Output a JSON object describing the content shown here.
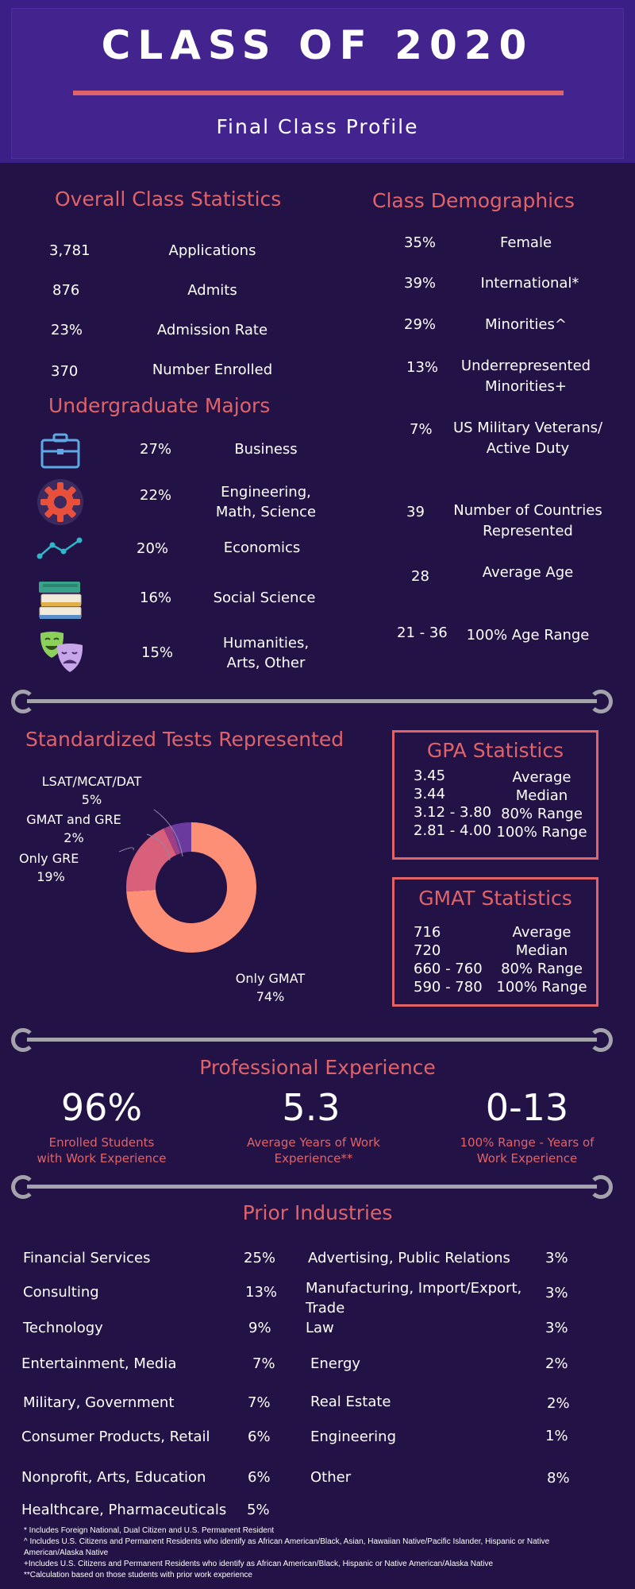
{
  "header": {
    "title": "CLASS OF 2020",
    "subtitle": "Final Class Profile"
  },
  "overall": {
    "title": "Overall Class Statistics",
    "rows": [
      {
        "value": "3,781",
        "label": "Applications"
      },
      {
        "value": "876",
        "label": "Admits"
      },
      {
        "value": "23%",
        "label": "Admission Rate"
      },
      {
        "value": "370",
        "label": "Number Enrolled"
      }
    ]
  },
  "majors": {
    "title": "Undergraduate Majors",
    "rows": [
      {
        "icon": "briefcase-icon",
        "value": "27%",
        "label_1": "Business",
        "label_2": ""
      },
      {
        "icon": "gear-icon",
        "value": "22%",
        "label_1": "Engineering,",
        "label_2": "Math, Science"
      },
      {
        "icon": "line-chart-icon",
        "value": "20%",
        "label_1": "Economics",
        "label_2": ""
      },
      {
        "icon": "books-icon",
        "value": "16%",
        "label_1": "Social Science",
        "label_2": ""
      },
      {
        "icon": "theater-masks-icon",
        "value": "15%",
        "label_1": "Humanities,",
        "label_2": "Arts, Other"
      }
    ]
  },
  "demographics": {
    "title": "Class Demographics",
    "rows": [
      {
        "value": "35%",
        "label_1": "Female",
        "label_2": ""
      },
      {
        "value": "39%",
        "label_1": "International*",
        "label_2": ""
      },
      {
        "value": "29%",
        "label_1": "Minorities^",
        "label_2": ""
      },
      {
        "value": "13%",
        "label_1": "Underrepresented",
        "label_2": "Minorities+"
      },
      {
        "value": "7%",
        "label_1": "US Military Veterans/",
        "label_2": "Active Duty"
      },
      {
        "value": "39",
        "label_1": "Number of Countries",
        "label_2": "Represented"
      },
      {
        "value": "28",
        "label_1": "Average Age",
        "label_2": ""
      },
      {
        "value": "21 - 36",
        "label_1": "100% Age Range",
        "label_2": ""
      }
    ]
  },
  "tests": {
    "title": "Standardized Tests Represented",
    "labels": [
      {
        "name": "LSAT/MCAT/DAT",
        "pct": "5%"
      },
      {
        "name": "GMAT and GRE",
        "pct": "2%"
      },
      {
        "name": "Only GRE",
        "pct": "19%"
      },
      {
        "name": "Only GMAT",
        "pct": "74%"
      }
    ]
  },
  "chart_data": {
    "type": "pie",
    "categories": [
      "Only GMAT",
      "Only GRE",
      "GMAT and GRE",
      "LSAT/MCAT/DAT"
    ],
    "values": [
      74,
      19,
      2,
      5
    ],
    "colors": [
      "#fd8f76",
      "#d9607a",
      "#9e3f86",
      "#6b3a9e"
    ],
    "donut": true
  },
  "gpa": {
    "title": "GPA Statistics",
    "rows": [
      {
        "value": "3.45",
        "label": "Average"
      },
      {
        "value": "3.44",
        "label": "Median"
      },
      {
        "value": "3.12 - 3.80",
        "label": "80% Range"
      },
      {
        "value": "2.81 - 4.00",
        "label": "100% Range"
      }
    ]
  },
  "gmat": {
    "title": "GMAT Statistics",
    "rows": [
      {
        "value": "716",
        "label": "Average"
      },
      {
        "value": "720",
        "label": "Median"
      },
      {
        "value": "660 - 760",
        "label": "80% Range"
      },
      {
        "value": "590 - 780",
        "label": "100% Range"
      }
    ]
  },
  "experience": {
    "title": "Professional Experience",
    "items": [
      {
        "value": "96%",
        "label_1": "Enrolled Students",
        "label_2": "with Work Experience"
      },
      {
        "value": "5.3",
        "label_1": "Average Years of Work",
        "label_2": "Experience**"
      },
      {
        "value": "0-13",
        "label_1": "100% Range - Years of",
        "label_2": "Work Experience"
      }
    ]
  },
  "industries": {
    "title": "Prior Industries",
    "left": [
      {
        "label": "Financial Services",
        "value": "25%"
      },
      {
        "label": "Consulting",
        "value": "13%"
      },
      {
        "label": "Technology",
        "value": "9%"
      },
      {
        "label": "Entertainment, Media",
        "value": "7%"
      },
      {
        "label": "Military, Government",
        "value": "7%"
      },
      {
        "label": "Consumer Products, Retail",
        "value": "6%"
      },
      {
        "label": "Nonprofit, Arts, Education",
        "value": "6%"
      },
      {
        "label": "Healthcare, Pharmaceuticals",
        "value": "5%"
      }
    ],
    "right": [
      {
        "label": "Advertising, Public Relations",
        "label_2": "",
        "value": "3%"
      },
      {
        "label": "Manufacturing, Import/Export,",
        "label_2": "Trade",
        "value": "3%"
      },
      {
        "label": "Law",
        "label_2": "",
        "value": "3%"
      },
      {
        "label": "Energy",
        "label_2": "",
        "value": "2%"
      },
      {
        "label": "Real Estate",
        "label_2": "",
        "value": "2%"
      },
      {
        "label": "Engineering",
        "label_2": "",
        "value": "1%"
      },
      {
        "label": "Other",
        "label_2": "",
        "value": "8%"
      }
    ]
  },
  "footnotes": [
    "* Includes Foreign National, Dual Citizen and U.S. Permanent Resident",
    "^ Includes U.S. Citizens and Permanent Residents who identify as African American/Black, Asian, Hawaiian Native/Pacific Islander, Hispanic or Native",
    "American/Alaska Native",
    "+Includes U.S. Citizens and Permanent Residents who identify as African American/Black, Hispanic or Native American/Alaska Native",
    "**Calculation based on those students with prior work experience"
  ],
  "colors": {
    "background": "#221245",
    "header": "#43248f",
    "accent": "#e0636a",
    "divider": "#a4a2aa"
  }
}
